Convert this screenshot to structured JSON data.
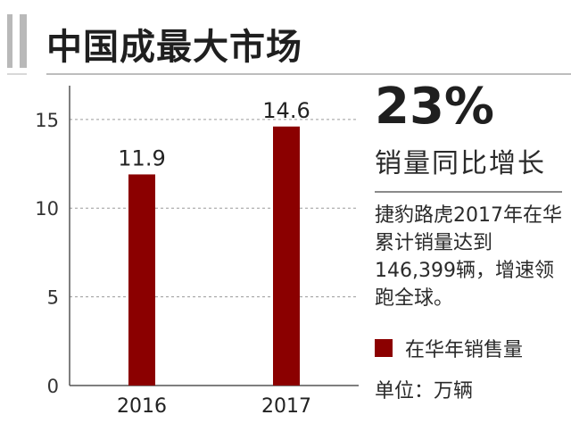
{
  "header": {
    "title": "中国成最大市场"
  },
  "highlight": {
    "percent": "23%",
    "percent_label": "销量同比增长",
    "description": "捷豹路虎2017年在华累计销量达到146,399辆，增速领跑全球。"
  },
  "legend": {
    "label": "在华年销售量",
    "color": "#8b0000"
  },
  "unit_label": "单位：万辆",
  "chart_data": {
    "type": "bar",
    "categories": [
      "2016",
      "2017"
    ],
    "series": [
      {
        "values": [
          11.9,
          14.6
        ],
        "color": "#8b0000"
      }
    ],
    "data_labels": [
      "11.9",
      "14.6"
    ],
    "yticks": [
      0,
      5,
      10,
      15
    ],
    "ylim": [
      0,
      16.5
    ],
    "grid": true,
    "title": "",
    "xlabel": "",
    "ylabel": ""
  }
}
